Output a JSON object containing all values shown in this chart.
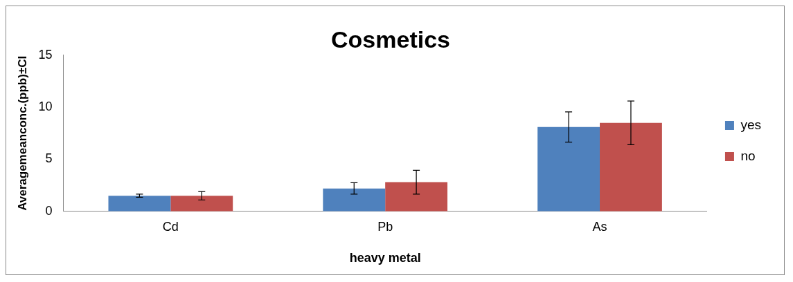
{
  "chart_data": {
    "type": "bar",
    "title": "Cosmetics",
    "xlabel": "heavy metal",
    "ylabel": "Averagemeanconc.(ppb)±CI",
    "categories": [
      "Cd",
      "Pb",
      "As"
    ],
    "series": [
      {
        "name": "yes",
        "color": "#4f81bd",
        "values": [
          1.5,
          2.2,
          8.1
        ],
        "errors": [
          0.15,
          0.55,
          1.45
        ]
      },
      {
        "name": "no",
        "color": "#c0504d",
        "values": [
          1.5,
          2.8,
          8.5
        ],
        "errors": [
          0.4,
          1.15,
          2.1
        ]
      }
    ],
    "ylim": [
      0,
      15
    ],
    "yticks": [
      0,
      5,
      10,
      15
    ],
    "grid": false,
    "legend": "right"
  }
}
